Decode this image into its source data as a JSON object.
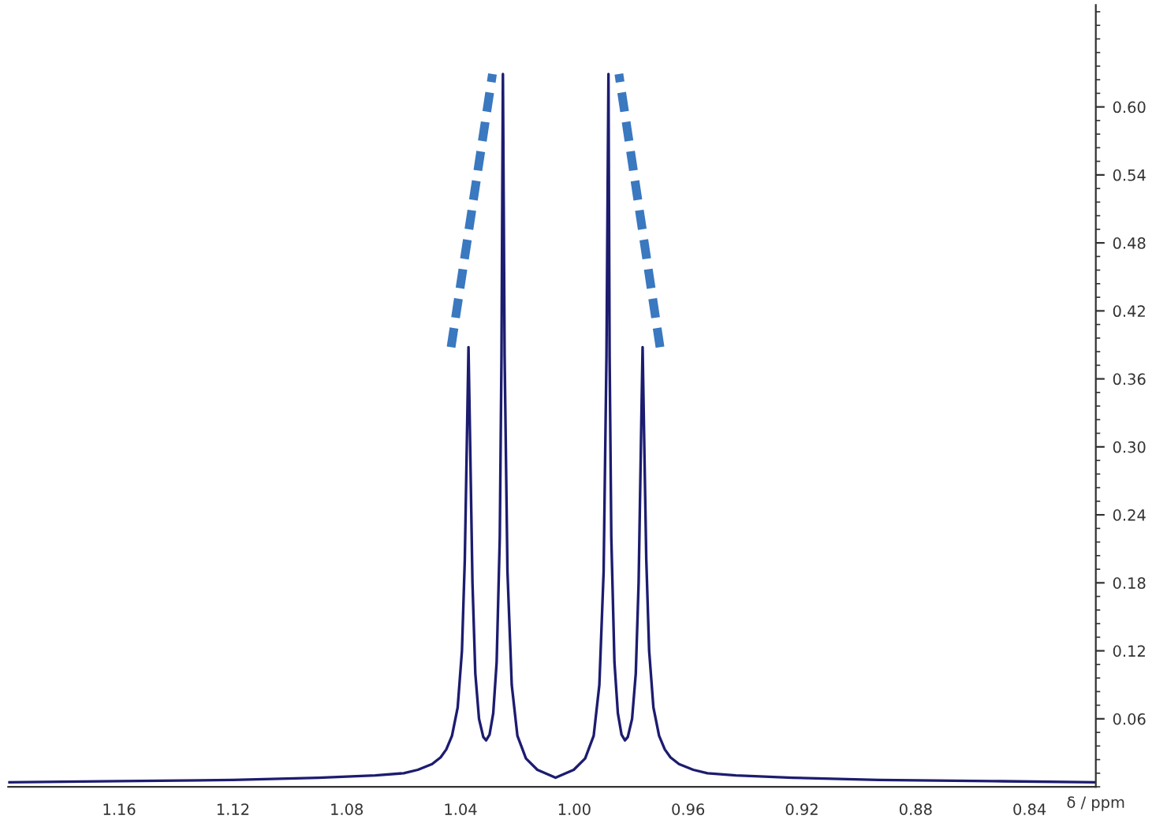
{
  "chart_data": {
    "type": "line",
    "xlabel": "δ / ppm",
    "x": [
      1.199,
      1.16,
      1.12,
      1.09,
      1.07,
      1.06,
      1.055,
      1.05,
      1.047,
      1.045,
      1.043,
      1.041,
      1.0395,
      1.0385,
      1.0378,
      1.0372,
      1.0366,
      1.0358,
      1.0348,
      1.0335,
      1.032,
      1.031,
      1.0298,
      1.0285,
      1.0273,
      1.0262,
      1.0256,
      1.0251,
      1.0245,
      1.0235,
      1.022,
      1.02,
      1.017,
      1.013,
      1.0066,
      1.0002,
      0.9962,
      0.9932,
      0.9912,
      0.9897,
      0.9887,
      0.988,
      0.9876,
      0.987,
      0.9859,
      0.9847,
      0.9834,
      0.9822,
      0.9812,
      0.9797,
      0.9784,
      0.9774,
      0.9766,
      0.976,
      0.9754,
      0.9747,
      0.9737,
      0.9722,
      0.9702,
      0.9682,
      0.9662,
      0.9632,
      0.9582,
      0.9532,
      0.9432,
      0.9232,
      0.8932,
      0.8532,
      0.8167
    ],
    "series": [
      {
        "color": "#1c1c70",
        "values": [
          0.004,
          0.005,
          0.006,
          0.008,
          0.01,
          0.012,
          0.015,
          0.02,
          0.026,
          0.033,
          0.045,
          0.07,
          0.12,
          0.2,
          0.3,
          0.388,
          0.3,
          0.18,
          0.1,
          0.06,
          0.044,
          0.041,
          0.046,
          0.065,
          0.11,
          0.22,
          0.38,
          0.629,
          0.38,
          0.19,
          0.09,
          0.045,
          0.025,
          0.015,
          0.008,
          0.015,
          0.025,
          0.045,
          0.09,
          0.19,
          0.38,
          0.629,
          0.38,
          0.22,
          0.11,
          0.065,
          0.046,
          0.041,
          0.044,
          0.06,
          0.1,
          0.18,
          0.3,
          0.388,
          0.3,
          0.2,
          0.12,
          0.07,
          0.045,
          0.033,
          0.026,
          0.02,
          0.015,
          0.012,
          0.01,
          0.008,
          0.006,
          0.005,
          0.004
        ]
      }
    ],
    "xlim": [
      1.199,
      0.8167
    ],
    "ylim": [
      0,
      0.69
    ],
    "xticks": [
      1.16,
      1.12,
      1.08,
      1.04,
      {
        "value": 1.0,
        "label": "1.00"
      },
      0.96,
      0.92,
      0.88,
      0.84
    ],
    "yticks": [
      0.06,
      0.12,
      0.18,
      0.24,
      {
        "value": 0.3,
        "label": "0.30"
      },
      0.36,
      0.42,
      0.48,
      0.54,
      {
        "value": 0.6,
        "label": "0.60"
      }
    ],
    "grid": false,
    "legend": false,
    "marker": "none",
    "line_style": "solid"
  }
}
